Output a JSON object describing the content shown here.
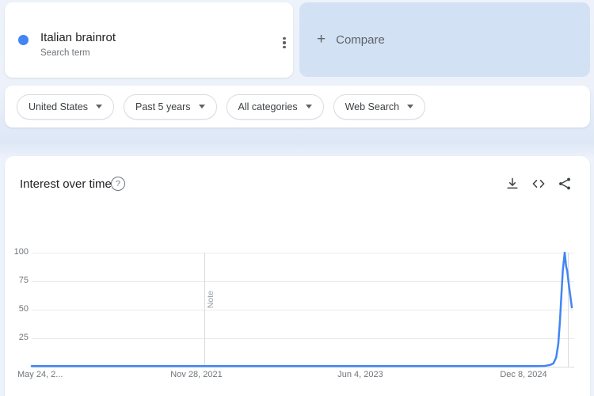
{
  "term_card": {
    "title": "Italian brainrot",
    "subtitle": "Search term",
    "dot_color": "#4285f4"
  },
  "compare_card": {
    "plus": "+",
    "label": "Compare"
  },
  "filters": {
    "geo": "United States",
    "time": "Past 5 years",
    "category": "All categories",
    "property": "Web Search"
  },
  "widget": {
    "title": "Interest over time",
    "help_glyph": "?"
  },
  "chart_data": {
    "type": "line",
    "title": "Interest over time",
    "ylim": [
      0,
      100
    ],
    "y_ticks": [
      "100",
      "75",
      "50",
      "25"
    ],
    "x_ticks": [
      "May 24, 2...",
      "Nov 28, 2021",
      "Jun 4, 2023",
      "Dec 8, 2024"
    ],
    "grid": "horizontal",
    "legend": "none",
    "line_color": "#4285f4",
    "series": [
      {
        "name": "Italian brainrot",
        "color": "#4285f4",
        "points": [
          [
            0,
            0.5
          ],
          [
            0.05,
            0.5
          ],
          [
            0.1,
            0.5
          ],
          [
            0.15,
            0.5
          ],
          [
            0.2,
            0.5
          ],
          [
            0.25,
            0.5
          ],
          [
            0.3,
            0.5
          ],
          [
            0.35,
            0.5
          ],
          [
            0.4,
            0.5
          ],
          [
            0.45,
            0.5
          ],
          [
            0.5,
            0.5
          ],
          [
            0.55,
            0.5
          ],
          [
            0.6,
            0.5
          ],
          [
            0.65,
            0.5
          ],
          [
            0.7,
            0.5
          ],
          [
            0.75,
            0.5
          ],
          [
            0.8,
            0.5
          ],
          [
            0.85,
            0.5
          ],
          [
            0.9,
            0.5
          ],
          [
            0.93,
            0.5
          ],
          [
            0.95,
            0.7
          ],
          [
            0.96,
            1.5
          ],
          [
            0.966,
            3
          ],
          [
            0.971,
            8
          ],
          [
            0.975,
            20
          ],
          [
            0.978,
            40
          ],
          [
            0.981,
            65
          ],
          [
            0.9835,
            85
          ],
          [
            0.9868,
            100
          ],
          [
            0.9895,
            88
          ],
          [
            0.9915,
            84
          ],
          [
            0.9945,
            72
          ],
          [
            0.9975,
            61
          ],
          [
            1,
            52
          ]
        ]
      }
    ],
    "note_markers": [
      {
        "t": 0.3196,
        "label": "Note"
      },
      {
        "t": 0.9927,
        "label": ""
      }
    ]
  }
}
